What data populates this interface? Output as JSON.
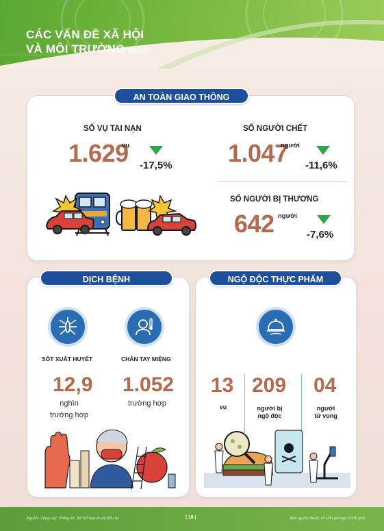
{
  "header": {
    "title_line1": "CÁC VẤN ĐỀ XÃ HỘI",
    "title_line2": "VÀ MÔI TRƯỜNG",
    "title_suffix": "(tiếp)"
  },
  "traffic": {
    "section_title": "AN TOÀN GIAO THÔNG",
    "accidents": {
      "label": "SỐ VỤ TAI NẠN",
      "value": "1.629",
      "unit": "vụ",
      "change": "-17,5%"
    },
    "deaths": {
      "label": "SỐ NGƯỜI CHẾT",
      "value": "1.047",
      "unit": "người",
      "change": "-11,6%"
    },
    "injured": {
      "label": "SỐ NGƯỜI BỊ THƯƠNG",
      "value": "642",
      "unit": "người",
      "change": "-7,6%"
    }
  },
  "disease": {
    "section_title": "DỊCH BỆNH",
    "dengue": {
      "label": "SỐT XUẤT HUYẾT",
      "value": "12,9",
      "unit_line1": "nghìn",
      "unit_line2": "trường hợp",
      "icon": "mosquito-icon"
    },
    "hfmd": {
      "label": "CHÂN TAY MIỆNG",
      "value": "1.052",
      "unit": "trường hợp",
      "icon": "sick-child-icon"
    }
  },
  "food": {
    "section_title": "NGỘ ĐỘC THỰC PHẨM",
    "cases": {
      "value": "13",
      "unit": "vụ"
    },
    "poisoned": {
      "value": "209",
      "unit_line1": "người bị",
      "unit_line2": "ngộ độc"
    },
    "deaths": {
      "value": "04",
      "unit_line1": "người",
      "unit_line2": "tử vong"
    },
    "icon": "food-dish-icon"
  },
  "footer": {
    "source": "Nguồn: Tổng cục Thống kê, Bộ Kế hoạch và Đầu tư",
    "page": "| 18 |",
    "copyright": "Bản quyền thuộc về Văn phòng Chính phủ"
  },
  "colors": {
    "accent_green": "#5aa832",
    "pill_blue": "#1d4f9a",
    "number_brown": "#b36a4e",
    "down_green": "#2fa64a"
  }
}
